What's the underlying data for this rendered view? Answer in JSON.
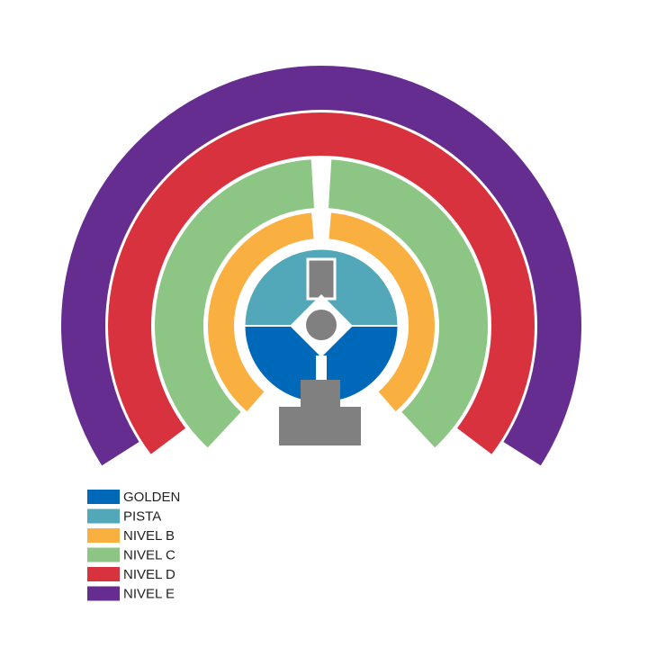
{
  "legend": {
    "items": [
      {
        "label": "GOLDEN",
        "color": "#0068b8"
      },
      {
        "label": "PISTA",
        "color": "#52a7b8"
      },
      {
        "label": "NIVEL B",
        "color": "#f9b041"
      },
      {
        "label": "NIVEL C",
        "color": "#8dc584"
      },
      {
        "label": "NIVEL D",
        "color": "#d7323e"
      },
      {
        "label": "NIVEL E",
        "color": "#652d90"
      }
    ]
  }
}
